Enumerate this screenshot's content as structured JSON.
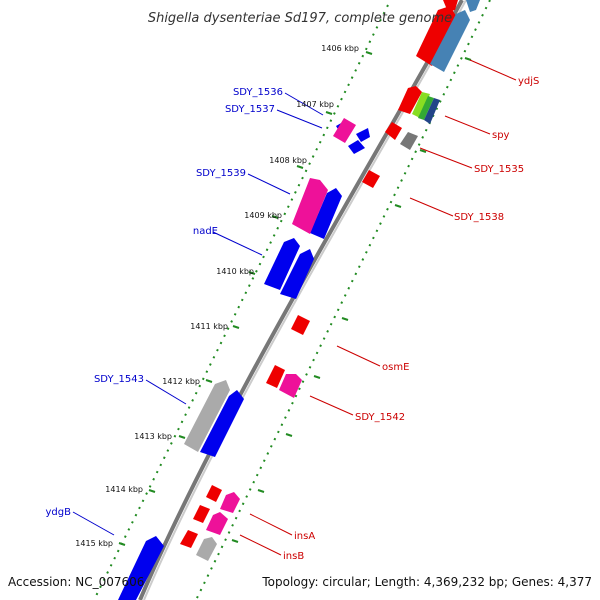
{
  "title": "Shigella dysenteriae Sd197, complete genome",
  "accession": "Accession: NC_007606",
  "summary": "Topology: circular; Length: 4,369,232 bp; Genes: 4,377",
  "colors": {
    "backbone": "#888888",
    "tick": "#228b22",
    "blue_gene": "#0000ee",
    "red_gene": "#ee0000",
    "magenta_gene": "#ee1199",
    "gray_gene": "#aaaaaa",
    "steel_gene": "#4682b4",
    "label_blue": "#0000cc",
    "label_red": "#cc0000"
  },
  "kbp_ticks": [
    "1406 kbp",
    "1407 kbp",
    "1408 kbp",
    "1409 kbp",
    "1410 kbp",
    "1411 kbp",
    "1412 kbp",
    "1413 kbp",
    "1414 kbp",
    "1415 kbp"
  ],
  "left_labels": [
    "SDY_1536",
    "SDY_1537",
    "SDY_1539",
    "nadE",
    "SDY_1543",
    "ydgB"
  ],
  "right_labels": [
    "ydjS",
    "spy",
    "SDY_1535",
    "SDY_1538",
    "osmE",
    "SDY_1542",
    "insA",
    "insB"
  ]
}
